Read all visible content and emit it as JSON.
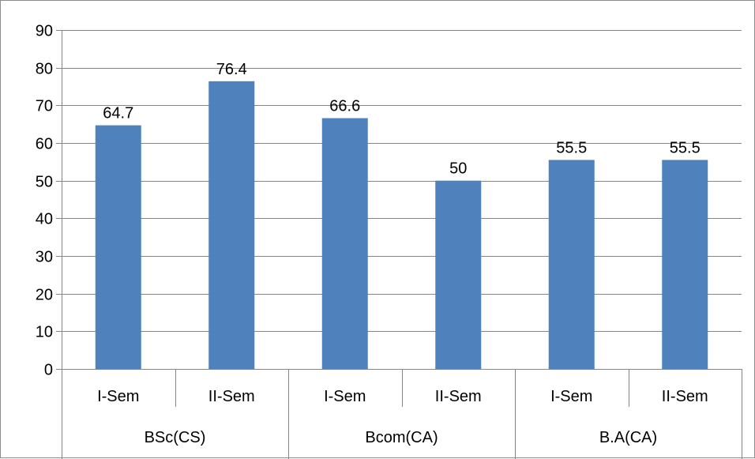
{
  "chart_data": {
    "type": "bar",
    "categories": [
      {
        "label": "I-Sem",
        "group": "BSc(CS)"
      },
      {
        "label": "II-Sem",
        "group": "BSc(CS)"
      },
      {
        "label": "I-Sem",
        "group": "Bcom(CA)"
      },
      {
        "label": "II-Sem",
        "group": "Bcom(CA)"
      },
      {
        "label": "I-Sem",
        "group": "B.A(CA)"
      },
      {
        "label": "II-Sem",
        "group": "B.A(CA)"
      }
    ],
    "groups": [
      "BSc(CS)",
      "Bcom(CA)",
      "B.A(CA)"
    ],
    "values": [
      64.7,
      76.4,
      66.6,
      50,
      55.5,
      55.5
    ],
    "value_labels": [
      "64.7",
      "76.4",
      "66.6",
      "50",
      "55.5",
      "55.5"
    ],
    "ylim": [
      0,
      90
    ],
    "yticks": [
      0,
      10,
      20,
      30,
      40,
      50,
      60,
      70,
      80,
      90
    ],
    "grid": true,
    "legend": "none",
    "title": "",
    "xlabel": "",
    "ylabel": "",
    "colors": {
      "bar": "#4F81BD",
      "grid": "#868686",
      "axis": "#868686"
    }
  }
}
